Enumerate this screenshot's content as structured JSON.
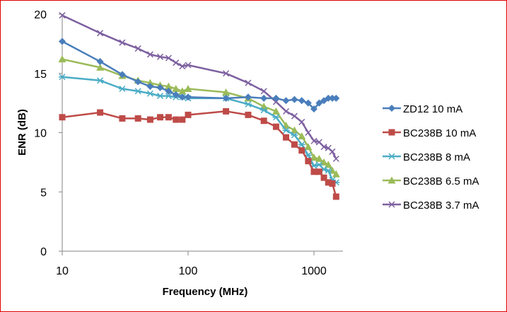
{
  "chart_data": {
    "type": "line",
    "title": "",
    "xlabel": "Frequency (MHz)",
    "ylabel": "ENR (dB)",
    "xscale": "log",
    "xlim": [
      10,
      1600
    ],
    "ylim": [
      0,
      20
    ],
    "x_ticks": [
      10,
      100,
      1000
    ],
    "x_tick_labels": [
      "10",
      "100",
      "1000"
    ],
    "y_ticks": [
      0,
      5,
      10,
      15,
      20
    ],
    "y_tick_labels": [
      "0",
      "5",
      "10",
      "15",
      "20"
    ],
    "grid": false,
    "legend_position": "right",
    "series": [
      {
        "name": "ZD12 10 mA",
        "color": "#4a7ebb",
        "marker": "diamond",
        "points": [
          [
            10,
            17.7
          ],
          [
            20,
            16.0
          ],
          [
            30,
            14.9
          ],
          [
            40,
            14.3
          ],
          [
            50,
            13.9
          ],
          [
            60,
            13.8
          ],
          [
            70,
            13.5
          ],
          [
            80,
            13.2
          ],
          [
            90,
            13.0
          ],
          [
            100,
            13.0
          ],
          [
            200,
            12.9
          ],
          [
            300,
            13.0
          ],
          [
            400,
            12.9
          ],
          [
            500,
            12.9
          ],
          [
            600,
            12.7
          ],
          [
            700,
            12.8
          ],
          [
            800,
            12.7
          ],
          [
            900,
            12.5
          ],
          [
            1000,
            12.0
          ],
          [
            1100,
            12.5
          ],
          [
            1200,
            12.7
          ],
          [
            1300,
            12.9
          ],
          [
            1400,
            12.9
          ],
          [
            1500,
            12.9
          ]
        ]
      },
      {
        "name": "BC238B 10 mA",
        "color": "#be4b48",
        "marker": "square",
        "points": [
          [
            10,
            11.3
          ],
          [
            20,
            11.7
          ],
          [
            30,
            11.2
          ],
          [
            40,
            11.2
          ],
          [
            50,
            11.1
          ],
          [
            60,
            11.3
          ],
          [
            70,
            11.3
          ],
          [
            80,
            11.1
          ],
          [
            90,
            11.1
          ],
          [
            100,
            11.5
          ],
          [
            200,
            11.8
          ],
          [
            300,
            11.5
          ],
          [
            400,
            11.0
          ],
          [
            500,
            10.5
          ],
          [
            600,
            9.6
          ],
          [
            700,
            9.0
          ],
          [
            800,
            8.5
          ],
          [
            900,
            7.6
          ],
          [
            1000,
            6.7
          ],
          [
            1100,
            6.7
          ],
          [
            1200,
            6.2
          ],
          [
            1300,
            5.8
          ],
          [
            1400,
            5.7
          ],
          [
            1500,
            4.6
          ]
        ]
      },
      {
        "name": "BC238B 8 mA",
        "color": "#4bacc6",
        "marker": "asterisk",
        "points": [
          [
            10,
            14.7
          ],
          [
            20,
            14.4
          ],
          [
            30,
            13.7
          ],
          [
            40,
            13.5
          ],
          [
            50,
            13.3
          ],
          [
            60,
            13.1
          ],
          [
            70,
            13.1
          ],
          [
            80,
            13.0
          ],
          [
            90,
            13.0
          ],
          [
            100,
            12.9
          ],
          [
            200,
            12.9
          ],
          [
            300,
            12.4
          ],
          [
            400,
            11.9
          ],
          [
            500,
            11.3
          ],
          [
            600,
            10.2
          ],
          [
            700,
            9.8
          ],
          [
            800,
            9.0
          ],
          [
            900,
            8.1
          ],
          [
            1000,
            7.2
          ],
          [
            1100,
            7.3
          ],
          [
            1200,
            6.9
          ],
          [
            1300,
            6.8
          ],
          [
            1400,
            6.0
          ],
          [
            1500,
            5.8
          ]
        ]
      },
      {
        "name": "BC238B 6.5 mA",
        "color": "#9bbb59",
        "marker": "triangle",
        "points": [
          [
            10,
            16.2
          ],
          [
            20,
            15.5
          ],
          [
            30,
            14.8
          ],
          [
            40,
            14.4
          ],
          [
            50,
            14.2
          ],
          [
            60,
            14.0
          ],
          [
            70,
            13.9
          ],
          [
            80,
            13.7
          ],
          [
            90,
            13.5
          ],
          [
            100,
            13.7
          ],
          [
            200,
            13.4
          ],
          [
            300,
            12.9
          ],
          [
            400,
            12.2
          ],
          [
            500,
            11.8
          ],
          [
            600,
            10.6
          ],
          [
            700,
            10.2
          ],
          [
            800,
            9.7
          ],
          [
            900,
            8.8
          ],
          [
            1000,
            7.9
          ],
          [
            1100,
            7.8
          ],
          [
            1200,
            7.5
          ],
          [
            1300,
            7.3
          ],
          [
            1400,
            6.8
          ],
          [
            1500,
            6.5
          ]
        ]
      },
      {
        "name": "BC238B 3.7 mA",
        "color": "#7d60a0",
        "marker": "x",
        "points": [
          [
            10,
            19.9
          ],
          [
            20,
            18.4
          ],
          [
            30,
            17.6
          ],
          [
            40,
            17.1
          ],
          [
            50,
            16.6
          ],
          [
            60,
            16.4
          ],
          [
            70,
            16.3
          ],
          [
            80,
            15.9
          ],
          [
            90,
            15.6
          ],
          [
            100,
            15.7
          ],
          [
            200,
            15.0
          ],
          [
            300,
            14.2
          ],
          [
            400,
            13.5
          ],
          [
            500,
            12.6
          ],
          [
            600,
            11.8
          ],
          [
            700,
            11.4
          ],
          [
            800,
            10.9
          ],
          [
            900,
            10.0
          ],
          [
            1000,
            9.3
          ],
          [
            1100,
            9.2
          ],
          [
            1200,
            8.8
          ],
          [
            1300,
            8.7
          ],
          [
            1400,
            8.4
          ],
          [
            1500,
            7.8
          ]
        ]
      }
    ]
  }
}
